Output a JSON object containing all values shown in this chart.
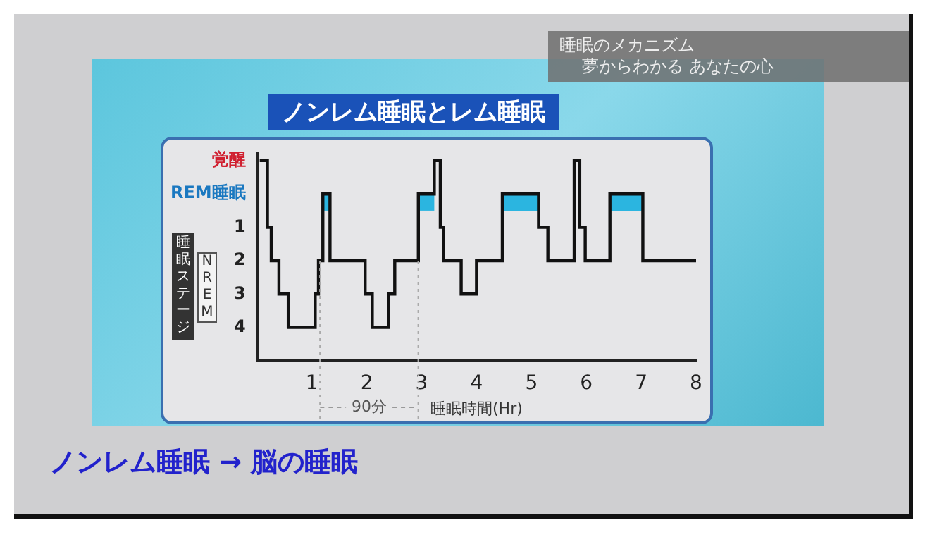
{
  "chart_data": {
    "type": "step",
    "title": "ノンレム睡眠とレム睡眠",
    "ylabel": "睡眠ステージ",
    "xlabel": "睡眠時間(Hr)",
    "annotations": [
      "睡眠のメカニズム",
      "夢からわかる あなたの心",
      "ノンレム睡眠 → 脳の睡眠",
      "NREM",
      "90分"
    ],
    "x": [
      0.05,
      0.19,
      0.26,
      0.4,
      0.57,
      1.06,
      1.12,
      1.2,
      1.33,
      1.97,
      2.1,
      2.4,
      2.51,
      2.94,
      3.23,
      3.34,
      3.4,
      3.72,
      4.0,
      4.47,
      5.13,
      5.3,
      5.78,
      5.88,
      5.98,
      6.43,
      7.03,
      8.0
    ],
    "series": [
      {
        "color": "#111111",
        "values": [
          -1,
          1,
          2,
          3,
          4,
          3,
          2,
          0,
          2,
          3,
          4,
          3,
          2,
          0,
          -1,
          1,
          2,
          3,
          2,
          0,
          1,
          2,
          -1,
          1,
          2,
          0,
          2,
          2
        ]
      }
    ],
    "xlim": [
      0,
      8
    ],
    "xticks": [
      1,
      2,
      3,
      4,
      5,
      6,
      7,
      8
    ],
    "ylim": [
      5,
      -1.2
    ],
    "yticks": [
      {
        "value": -1,
        "label": "覚醒"
      },
      {
        "value": 0,
        "label": "REM睡眠"
      },
      1,
      2,
      3,
      4
    ],
    "bands": [
      {
        "axis": "x",
        "from": 1.2,
        "to": 1.33,
        "color": "#2bb5e0"
      },
      {
        "axis": "x",
        "from": 2.94,
        "to": 3.23,
        "color": "#2bb5e0"
      },
      {
        "axis": "x",
        "from": 4.47,
        "to": 5.13,
        "color": "#2bb5e0"
      },
      {
        "axis": "x",
        "from": 6.43,
        "to": 7.03,
        "color": "#2bb5e0"
      }
    ],
    "ref_lines": [
      {
        "axis": "x",
        "value": 1.15,
        "line_style": "dotted",
        "color": "#aaaaaa"
      },
      {
        "axis": "x",
        "value": 2.94,
        "line_style": "dotted",
        "color": "#aaaaaa"
      }
    ],
    "grid": false,
    "legend": false
  }
}
